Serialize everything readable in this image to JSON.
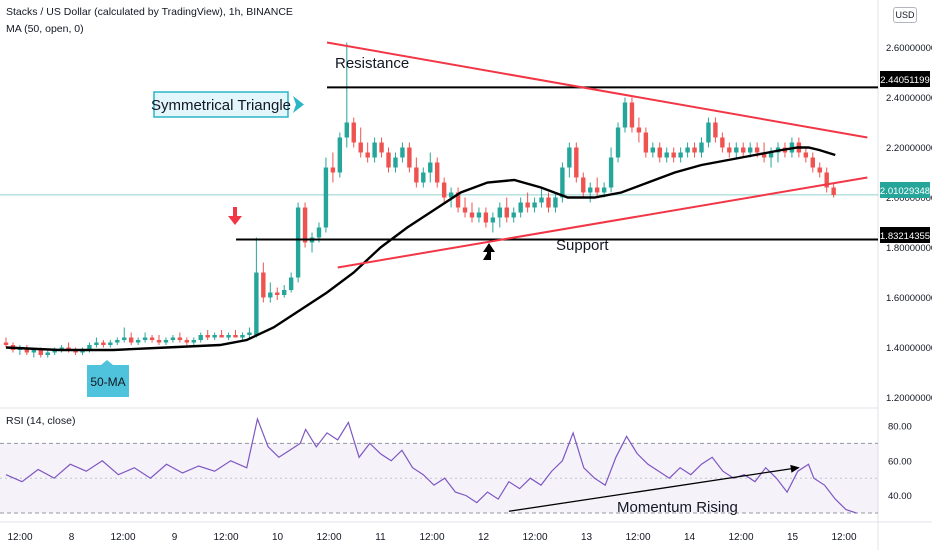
{
  "header": {
    "title": "Stacks / US Dollar (calculated by TradingView), 1h, BINANCE",
    "ma_label": "MA (50, open, 0)",
    "currency": "USD",
    "rsi_label": "RSI (14, close)"
  },
  "annotations": {
    "pattern": "Symmetrical Triangle",
    "resistance": "Resistance",
    "support": "Support",
    "ma_tag": "50-MA",
    "momentum": "Momentum Rising"
  },
  "price_labels": {
    "resistance": "2.44051199",
    "current": "2.01029348",
    "support": "1.83214355"
  },
  "colors": {
    "up": "#26a69a",
    "down": "#ef5350",
    "trend": "#f23645",
    "ma": "#000000",
    "rsi": "#7e57c2",
    "annotation_bg": "#e3f6fb",
    "annotation_border": "#2bb5c7",
    "tag_bg": "#4fc3dc"
  },
  "chart_data": {
    "type": "candlestick",
    "price_axis": {
      "ticks": [
        "2.60000000",
        "2.40000000",
        "2.20000000",
        "2.00000000",
        "1.80000000",
        "1.60000000",
        "1.40000000",
        "1.20000000"
      ],
      "range": [
        1.19,
        2.67
      ]
    },
    "time_axis": {
      "ticks": [
        "12:00",
        "8",
        "12:00",
        "9",
        "12:00",
        "10",
        "12:00",
        "11",
        "12:00",
        "12",
        "12:00",
        "13",
        "12:00",
        "14",
        "12:00",
        "15",
        "12:00"
      ]
    },
    "key_levels": {
      "resistance": 2.44051199,
      "support": 1.83214355,
      "current": 2.01029348
    },
    "trendlines": [
      {
        "name": "upper",
        "points": [
          [
            6.0,
            2.62
          ],
          [
            16.1,
            2.24
          ]
        ]
      },
      {
        "name": "lower",
        "points": [
          [
            6.2,
            1.72
          ],
          [
            16.1,
            2.08
          ]
        ]
      }
    ],
    "ma50_points": [
      [
        0.0,
        1.4
      ],
      [
        1.0,
        1.39
      ],
      [
        2.0,
        1.39
      ],
      [
        3.0,
        1.4
      ],
      [
        4.0,
        1.41
      ],
      [
        4.5,
        1.43
      ],
      [
        5.0,
        1.48
      ],
      [
        5.5,
        1.55
      ],
      [
        6.0,
        1.62
      ],
      [
        6.5,
        1.7
      ],
      [
        7.0,
        1.8
      ],
      [
        7.5,
        1.88
      ],
      [
        8.0,
        1.95
      ],
      [
        8.5,
        2.02
      ],
      [
        9.0,
        2.06
      ],
      [
        9.5,
        2.07
      ],
      [
        10.0,
        2.04
      ],
      [
        10.5,
        2.0
      ],
      [
        11.0,
        2.0
      ],
      [
        11.5,
        2.02
      ],
      [
        12.0,
        2.06
      ],
      [
        12.5,
        2.1
      ],
      [
        13.0,
        2.13
      ],
      [
        13.5,
        2.15
      ],
      [
        14.0,
        2.17
      ],
      [
        14.5,
        2.19
      ],
      [
        14.8,
        2.2
      ],
      [
        15.0,
        2.2
      ],
      [
        15.2,
        2.19
      ],
      [
        15.5,
        2.17
      ]
    ],
    "candles_ohlc": [
      [
        0.0,
        1.42,
        1.44,
        1.4,
        1.41
      ],
      [
        0.13,
        1.41,
        1.42,
        1.38,
        1.39
      ],
      [
        0.26,
        1.39,
        1.41,
        1.37,
        1.4
      ],
      [
        0.39,
        1.4,
        1.41,
        1.37,
        1.38
      ],
      [
        0.52,
        1.38,
        1.4,
        1.36,
        1.39
      ],
      [
        0.65,
        1.39,
        1.4,
        1.36,
        1.37
      ],
      [
        0.78,
        1.37,
        1.39,
        1.36,
        1.38
      ],
      [
        0.91,
        1.38,
        1.4,
        1.37,
        1.39
      ],
      [
        1.04,
        1.39,
        1.41,
        1.38,
        1.4
      ],
      [
        1.17,
        1.4,
        1.42,
        1.38,
        1.39
      ],
      [
        1.3,
        1.39,
        1.4,
        1.37,
        1.38
      ],
      [
        1.43,
        1.38,
        1.4,
        1.37,
        1.39
      ],
      [
        1.56,
        1.39,
        1.42,
        1.38,
        1.41
      ],
      [
        1.69,
        1.41,
        1.44,
        1.4,
        1.42
      ],
      [
        1.82,
        1.42,
        1.43,
        1.4,
        1.41
      ],
      [
        1.95,
        1.41,
        1.43,
        1.4,
        1.42
      ],
      [
        2.08,
        1.42,
        1.44,
        1.41,
        1.43
      ],
      [
        2.21,
        1.43,
        1.48,
        1.42,
        1.44
      ],
      [
        2.34,
        1.44,
        1.46,
        1.41,
        1.42
      ],
      [
        2.47,
        1.42,
        1.44,
        1.41,
        1.43
      ],
      [
        2.6,
        1.43,
        1.46,
        1.42,
        1.44
      ],
      [
        2.73,
        1.44,
        1.45,
        1.42,
        1.43
      ],
      [
        2.86,
        1.43,
        1.45,
        1.41,
        1.42
      ],
      [
        2.99,
        1.42,
        1.44,
        1.41,
        1.43
      ],
      [
        3.12,
        1.43,
        1.45,
        1.42,
        1.44
      ],
      [
        3.25,
        1.44,
        1.46,
        1.42,
        1.43
      ],
      [
        3.38,
        1.43,
        1.44,
        1.41,
        1.42
      ],
      [
        3.51,
        1.42,
        1.44,
        1.41,
        1.43
      ],
      [
        3.64,
        1.43,
        1.46,
        1.42,
        1.45
      ],
      [
        3.77,
        1.45,
        1.47,
        1.43,
        1.44
      ],
      [
        3.9,
        1.44,
        1.46,
        1.43,
        1.45
      ],
      [
        4.03,
        1.45,
        1.47,
        1.44,
        1.44
      ],
      [
        4.16,
        1.44,
        1.46,
        1.43,
        1.45
      ],
      [
        4.29,
        1.45,
        1.47,
        1.44,
        1.44
      ],
      [
        4.42,
        1.44,
        1.46,
        1.43,
        1.45
      ],
      [
        4.55,
        1.45,
        1.48,
        1.44,
        1.46
      ],
      [
        4.68,
        1.45,
        1.84,
        1.44,
        1.7
      ],
      [
        4.81,
        1.7,
        1.74,
        1.58,
        1.6
      ],
      [
        4.94,
        1.6,
        1.66,
        1.58,
        1.62
      ],
      [
        5.07,
        1.62,
        1.64,
        1.59,
        1.61
      ],
      [
        5.2,
        1.61,
        1.65,
        1.6,
        1.63
      ],
      [
        5.33,
        1.63,
        1.7,
        1.62,
        1.68
      ],
      [
        5.46,
        1.68,
        1.98,
        1.66,
        1.96
      ],
      [
        5.59,
        1.96,
        1.98,
        1.8,
        1.82
      ],
      [
        5.72,
        1.82,
        1.86,
        1.78,
        1.84
      ],
      [
        5.85,
        1.84,
        1.9,
        1.82,
        1.88
      ],
      [
        5.98,
        1.88,
        2.16,
        1.86,
        2.12
      ],
      [
        6.11,
        2.12,
        2.18,
        2.06,
        2.1
      ],
      [
        6.24,
        2.1,
        2.26,
        2.08,
        2.24
      ],
      [
        6.37,
        2.24,
        2.62,
        2.2,
        2.3
      ],
      [
        6.5,
        2.3,
        2.32,
        2.2,
        2.22
      ],
      [
        6.63,
        2.22,
        2.28,
        2.16,
        2.18
      ],
      [
        6.76,
        2.18,
        2.22,
        2.14,
        2.16
      ],
      [
        6.89,
        2.16,
        2.24,
        2.14,
        2.22
      ],
      [
        7.02,
        2.22,
        2.24,
        2.16,
        2.18
      ],
      [
        7.15,
        2.18,
        2.2,
        2.1,
        2.12
      ],
      [
        7.28,
        2.12,
        2.18,
        2.1,
        2.16
      ],
      [
        7.41,
        2.16,
        2.22,
        2.14,
        2.2
      ],
      [
        7.54,
        2.2,
        2.22,
        2.1,
        2.12
      ],
      [
        7.67,
        2.12,
        2.16,
        2.04,
        2.06
      ],
      [
        7.8,
        2.06,
        2.12,
        2.04,
        2.1
      ],
      [
        7.93,
        2.1,
        2.18,
        2.06,
        2.14
      ],
      [
        8.06,
        2.14,
        2.16,
        2.04,
        2.06
      ],
      [
        8.19,
        2.06,
        2.08,
        1.98,
        2.0
      ],
      [
        8.32,
        2.0,
        2.04,
        1.96,
        2.02
      ],
      [
        8.45,
        2.02,
        2.04,
        1.94,
        1.96
      ],
      [
        8.58,
        1.96,
        2.0,
        1.92,
        1.94
      ],
      [
        8.71,
        1.94,
        1.98,
        1.9,
        1.92
      ],
      [
        8.84,
        1.92,
        1.96,
        1.9,
        1.94
      ],
      [
        8.97,
        1.94,
        1.96,
        1.88,
        1.9
      ],
      [
        9.1,
        1.9,
        1.94,
        1.86,
        1.92
      ],
      [
        9.23,
        1.92,
        1.98,
        1.88,
        1.96
      ],
      [
        9.36,
        1.96,
        2.0,
        1.9,
        1.92
      ],
      [
        9.49,
        1.92,
        1.96,
        1.9,
        1.94
      ],
      [
        9.62,
        1.94,
        2.0,
        1.92,
        1.98
      ],
      [
        9.75,
        1.98,
        2.02,
        1.94,
        1.96
      ],
      [
        9.88,
        1.96,
        2.0,
        1.94,
        1.98
      ],
      [
        10.01,
        1.98,
        2.04,
        1.96,
        2.0
      ],
      [
        10.14,
        2.0,
        2.02,
        1.94,
        1.96
      ],
      [
        10.27,
        1.96,
        2.02,
        1.94,
        2.0
      ],
      [
        10.4,
        2.0,
        2.14,
        1.98,
        2.12
      ],
      [
        10.53,
        2.12,
        2.22,
        2.08,
        2.2
      ],
      [
        10.66,
        2.2,
        2.22,
        2.06,
        2.08
      ],
      [
        10.79,
        2.08,
        2.1,
        2.0,
        2.02
      ],
      [
        10.92,
        2.02,
        2.06,
        1.98,
        2.04
      ],
      [
        11.05,
        2.04,
        2.08,
        2.0,
        2.02
      ],
      [
        11.18,
        2.02,
        2.06,
        2.0,
        2.04
      ],
      [
        11.31,
        2.04,
        2.2,
        2.02,
        2.16
      ],
      [
        11.44,
        2.16,
        2.3,
        2.14,
        2.28
      ],
      [
        11.57,
        2.28,
        2.4,
        2.26,
        2.38
      ],
      [
        11.7,
        2.38,
        2.4,
        2.26,
        2.28
      ],
      [
        11.83,
        2.28,
        2.32,
        2.22,
        2.26
      ],
      [
        11.96,
        2.26,
        2.28,
        2.16,
        2.18
      ],
      [
        12.09,
        2.18,
        2.22,
        2.16,
        2.2
      ],
      [
        12.22,
        2.2,
        2.22,
        2.14,
        2.16
      ],
      [
        12.35,
        2.16,
        2.2,
        2.14,
        2.18
      ],
      [
        12.48,
        2.18,
        2.2,
        2.14,
        2.16
      ],
      [
        12.61,
        2.16,
        2.2,
        2.14,
        2.18
      ],
      [
        12.74,
        2.18,
        2.22,
        2.16,
        2.2
      ],
      [
        12.87,
        2.2,
        2.22,
        2.16,
        2.18
      ],
      [
        13.0,
        2.18,
        2.24,
        2.16,
        2.22
      ],
      [
        13.13,
        2.22,
        2.32,
        2.2,
        2.3
      ],
      [
        13.26,
        2.3,
        2.32,
        2.22,
        2.24
      ],
      [
        13.39,
        2.24,
        2.26,
        2.18,
        2.2
      ],
      [
        13.52,
        2.2,
        2.22,
        2.16,
        2.18
      ],
      [
        13.65,
        2.18,
        2.22,
        2.16,
        2.2
      ],
      [
        13.78,
        2.2,
        2.22,
        2.16,
        2.18
      ],
      [
        13.91,
        2.18,
        2.22,
        2.16,
        2.2
      ],
      [
        14.04,
        2.2,
        2.22,
        2.16,
        2.18
      ],
      [
        14.17,
        2.18,
        2.22,
        2.14,
        2.16
      ],
      [
        14.3,
        2.16,
        2.2,
        2.12,
        2.18
      ],
      [
        14.43,
        2.18,
        2.22,
        2.14,
        2.2
      ],
      [
        14.56,
        2.2,
        2.22,
        2.16,
        2.18
      ],
      [
        14.69,
        2.18,
        2.24,
        2.16,
        2.22
      ],
      [
        14.82,
        2.22,
        2.24,
        2.16,
        2.18
      ],
      [
        14.95,
        2.18,
        2.2,
        2.14,
        2.16
      ],
      [
        15.08,
        2.16,
        2.18,
        2.1,
        2.12
      ],
      [
        15.21,
        2.12,
        2.14,
        2.08,
        2.1
      ],
      [
        15.34,
        2.1,
        2.12,
        2.02,
        2.04
      ],
      [
        15.47,
        2.04,
        2.06,
        2.0,
        2.01
      ]
    ],
    "rsi": {
      "ticks": [
        "80.00",
        "60.00",
        "40.00"
      ],
      "range": [
        26,
        88
      ],
      "band": [
        30,
        70
      ],
      "points": [
        [
          0.0,
          52
        ],
        [
          0.3,
          48
        ],
        [
          0.6,
          55
        ],
        [
          0.9,
          50
        ],
        [
          1.2,
          58
        ],
        [
          1.5,
          54
        ],
        [
          1.8,
          60
        ],
        [
          2.1,
          52
        ],
        [
          2.4,
          56
        ],
        [
          2.7,
          50
        ],
        [
          3.0,
          58
        ],
        [
          3.3,
          53
        ],
        [
          3.6,
          57
        ],
        [
          3.9,
          54
        ],
        [
          4.2,
          60
        ],
        [
          4.5,
          56
        ],
        [
          4.7,
          84
        ],
        [
          4.9,
          68
        ],
        [
          5.1,
          62
        ],
        [
          5.3,
          66
        ],
        [
          5.5,
          70
        ],
        [
          5.6,
          78
        ],
        [
          5.8,
          68
        ],
        [
          6.0,
          76
        ],
        [
          6.2,
          72
        ],
        [
          6.4,
          82
        ],
        [
          6.6,
          62
        ],
        [
          6.8,
          70
        ],
        [
          7.0,
          64
        ],
        [
          7.2,
          60
        ],
        [
          7.4,
          66
        ],
        [
          7.6,
          56
        ],
        [
          7.8,
          52
        ],
        [
          8.0,
          46
        ],
        [
          8.2,
          50
        ],
        [
          8.4,
          42
        ],
        [
          8.6,
          40
        ],
        [
          8.8,
          36
        ],
        [
          9.0,
          42
        ],
        [
          9.2,
          38
        ],
        [
          9.4,
          48
        ],
        [
          9.6,
          44
        ],
        [
          9.8,
          50
        ],
        [
          10.0,
          46
        ],
        [
          10.2,
          54
        ],
        [
          10.4,
          60
        ],
        [
          10.6,
          76
        ],
        [
          10.8,
          56
        ],
        [
          11.0,
          50
        ],
        [
          11.2,
          46
        ],
        [
          11.4,
          62
        ],
        [
          11.6,
          74
        ],
        [
          11.8,
          64
        ],
        [
          12.0,
          58
        ],
        [
          12.2,
          54
        ],
        [
          12.4,
          50
        ],
        [
          12.6,
          56
        ],
        [
          12.8,
          52
        ],
        [
          13.0,
          58
        ],
        [
          13.2,
          62
        ],
        [
          13.4,
          54
        ],
        [
          13.6,
          50
        ],
        [
          13.8,
          52
        ],
        [
          14.0,
          48
        ],
        [
          14.2,
          56
        ],
        [
          14.4,
          50
        ],
        [
          14.6,
          42
        ],
        [
          14.8,
          54
        ],
        [
          15.0,
          58
        ],
        [
          15.1,
          50
        ],
        [
          15.3,
          46
        ],
        [
          15.5,
          38
        ],
        [
          15.7,
          32
        ],
        [
          15.9,
          30
        ]
      ],
      "trendline": [
        [
          9.4,
          31
        ],
        [
          14.8,
          56
        ]
      ]
    }
  }
}
